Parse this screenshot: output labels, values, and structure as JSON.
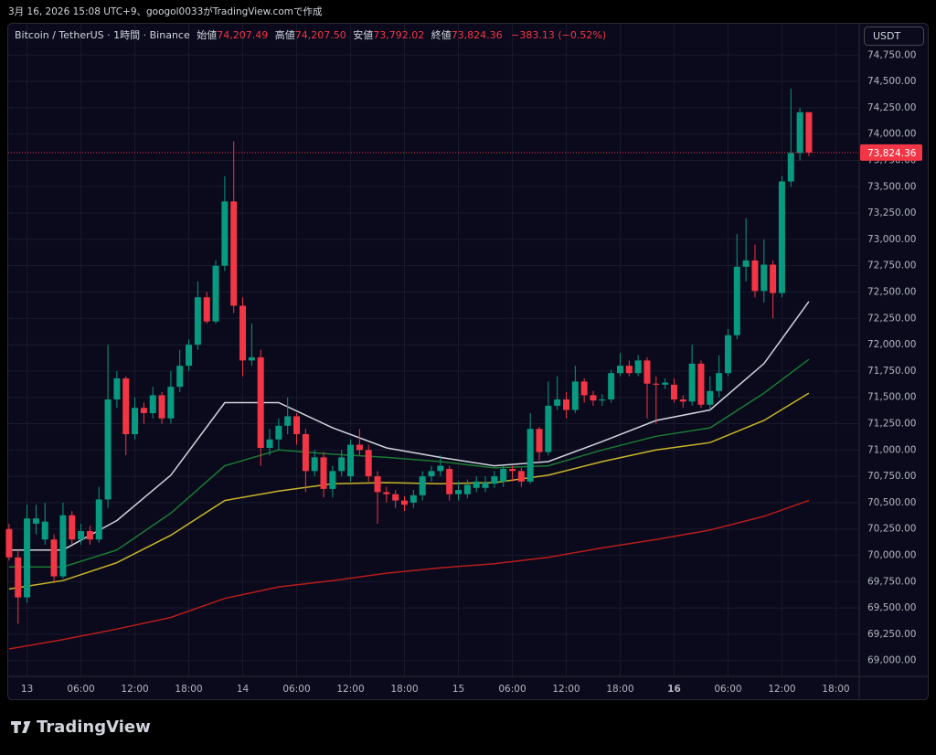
{
  "header": "3月 16, 2026 15:08 UTC+9、googol0033がTradingView.comで作成",
  "legend": {
    "symbol": "Bitcoin / TetherUS · 1時間 · Binance",
    "open_label": "始値",
    "open": "74,207.49",
    "high_label": "高値",
    "high": "74,207.50",
    "low_label": "安値",
    "low": "73,792.02",
    "close_label": "終値",
    "close": "73,824.36",
    "change": "−383.13 (−0.52%)"
  },
  "currency_button": "USDT",
  "brand": "TradingView",
  "chart_data": {
    "type": "candlestick",
    "up_color": "#089981",
    "down_color": "#f23645",
    "grid": true,
    "xlim": [
      -2.5,
      92.6
    ],
    "ylim": [
      68850,
      75030
    ],
    "xticks": [
      {
        "value": 0,
        "label": "13"
      },
      {
        "value": 6,
        "label": "06:00"
      },
      {
        "value": 12,
        "label": "12:00"
      },
      {
        "value": 18,
        "label": "18:00"
      },
      {
        "value": 24,
        "label": "14"
      },
      {
        "value": 30,
        "label": "06:00"
      },
      {
        "value": 36,
        "label": "12:00"
      },
      {
        "value": 42,
        "label": "18:00"
      },
      {
        "value": 48,
        "label": "15"
      },
      {
        "value": 54,
        "label": "06:00"
      },
      {
        "value": 60,
        "label": "12:00"
      },
      {
        "value": 66,
        "label": "18:00"
      },
      {
        "value": 72,
        "label": "16"
      },
      {
        "value": 78,
        "label": "06:00"
      },
      {
        "value": 84,
        "label": "12:00"
      },
      {
        "value": 90,
        "label": "18:00"
      }
    ],
    "yticks": [
      {
        "value": 69000,
        "label": "69,000.00"
      },
      {
        "value": 69250,
        "label": "69,250.00"
      },
      {
        "value": 69500,
        "label": "69,500.00"
      },
      {
        "value": 69750,
        "label": "69,750.00"
      },
      {
        "value": 70000,
        "label": "70,000.00"
      },
      {
        "value": 70250,
        "label": "70,250.00"
      },
      {
        "value": 70500,
        "label": "70,500.00"
      },
      {
        "value": 70750,
        "label": "70,750.00"
      },
      {
        "value": 71000,
        "label": "71,000.00"
      },
      {
        "value": 71250,
        "label": "71,250.00"
      },
      {
        "value": 71500,
        "label": "71,500.00"
      },
      {
        "value": 71750,
        "label": "71,750.00"
      },
      {
        "value": 72000,
        "label": "72,000.00"
      },
      {
        "value": 72250,
        "label": "72,250.00"
      },
      {
        "value": 72500,
        "label": "72,500.00"
      },
      {
        "value": 72750,
        "label": "72,750.00"
      },
      {
        "value": 73000,
        "label": "73,000.00"
      },
      {
        "value": 73250,
        "label": "73,250.00"
      },
      {
        "value": 73500,
        "label": "73,500.00"
      },
      {
        "value": 73750,
        "label": "73,750.00"
      },
      {
        "value": 74000,
        "label": "74,000.00"
      },
      {
        "value": 74250,
        "label": "74,250.00"
      },
      {
        "value": 74500,
        "label": "74,500.00"
      },
      {
        "value": 74750,
        "label": "74,750.00"
      }
    ],
    "last_price": {
      "value": 73824.36,
      "label": "73,824.36"
    },
    "x": [
      -2,
      -1,
      0,
      1,
      2,
      3,
      4,
      5,
      6,
      7,
      8,
      9,
      10,
      11,
      12,
      13,
      14,
      15,
      16,
      17,
      18,
      19,
      20,
      21,
      22,
      23,
      24,
      25,
      26,
      27,
      28,
      29,
      30,
      31,
      32,
      33,
      34,
      35,
      36,
      37,
      38,
      39,
      40,
      41,
      42,
      43,
      44,
      45,
      46,
      47,
      48,
      49,
      50,
      51,
      52,
      53,
      54,
      55,
      56,
      57,
      58,
      59,
      60,
      61,
      62,
      63,
      64,
      65,
      66,
      67,
      68,
      69,
      70,
      71,
      72,
      73,
      74,
      75,
      76,
      77,
      78,
      79,
      80,
      81,
      82,
      83,
      84,
      85,
      86,
      87
    ],
    "open": [
      70250,
      69980,
      69600,
      70300,
      70150,
      70150,
      69800,
      70380,
      70150,
      70230,
      70150,
      70530,
      71480,
      71680,
      71150,
      71400,
      71350,
      71520,
      71300,
      71600,
      71800,
      72000,
      72450,
      72220,
      72750,
      73360,
      72370,
      71850,
      71880,
      71020,
      71100,
      71230,
      71320,
      71150,
      70800,
      70930,
      70630,
      70800,
      70750,
      71050,
      71000,
      70750,
      70600,
      70580,
      70520,
      70500,
      70570,
      70750,
      70800,
      70820,
      70580,
      70580,
      70640,
      70640,
      70680,
      70700,
      70820,
      70800,
      70700,
      71200,
      70980,
      71420,
      71480,
      71380,
      71650,
      71520,
      71470,
      71480,
      71730,
      71800,
      71730,
      71850,
      71630,
      71620,
      71620,
      71480,
      71460,
      71820,
      71430,
      71560,
      71730,
      72090,
      72740,
      72800,
      72510,
      72760,
      72490,
      73550,
      73820,
      74207.49
    ],
    "high": [
      70300,
      70050,
      70480,
      70480,
      70500,
      70200,
      70500,
      70420,
      70300,
      70280,
      70650,
      72000,
      71750,
      71700,
      71500,
      71450,
      71600,
      71550,
      71750,
      71950,
      72050,
      72600,
      72500,
      72800,
      73600,
      73930,
      72450,
      72200,
      71950,
      71200,
      71300,
      71500,
      71350,
      71200,
      71000,
      70980,
      70850,
      71000,
      71100,
      71200,
      71050,
      70800,
      70650,
      70620,
      70560,
      70620,
      70800,
      70850,
      70950,
      70850,
      70700,
      70720,
      70750,
      70750,
      70800,
      70850,
      70850,
      70830,
      71350,
      71220,
      71650,
      71700,
      71550,
      71800,
      71680,
      71560,
      71530,
      71760,
      71920,
      71850,
      71900,
      71880,
      71700,
      71680,
      71680,
      71520,
      72000,
      71850,
      71700,
      71900,
      72150,
      73050,
      73200,
      72950,
      73000,
      72800,
      73600,
      74430,
      74250,
      74207.5
    ],
    "low": [
      69950,
      69350,
      69550,
      70200,
      70100,
      69750,
      69780,
      70100,
      70100,
      70100,
      70120,
      70450,
      71400,
      70950,
      71100,
      71250,
      71300,
      71250,
      71250,
      71550,
      71750,
      71950,
      72200,
      72200,
      72700,
      72300,
      71700,
      71800,
      70850,
      70950,
      71000,
      71150,
      71050,
      70600,
      70750,
      70550,
      70550,
      70750,
      70700,
      70950,
      70700,
      70300,
      70500,
      70450,
      70420,
      70450,
      70520,
      70700,
      70750,
      70520,
      70520,
      70540,
      70600,
      70600,
      70640,
      70650,
      70700,
      70650,
      70680,
      70900,
      70950,
      71380,
      71300,
      71350,
      71450,
      71420,
      71420,
      71450,
      71700,
      71700,
      71700,
      71300,
      71250,
      71580,
      71450,
      71400,
      71420,
      71400,
      71380,
      71500,
      71700,
      72050,
      72600,
      72450,
      72400,
      72250,
      72450,
      73500,
      73750,
      73792.02
    ],
    "close": [
      69980,
      69600,
      70350,
      70350,
      70320,
      69800,
      70380,
      70150,
      70230,
      70150,
      70530,
      71480,
      71680,
      71150,
      71400,
      71350,
      71520,
      71300,
      71600,
      71800,
      72000,
      72450,
      72220,
      72750,
      73360,
      72370,
      71850,
      71880,
      71020,
      71100,
      71230,
      71320,
      71150,
      70800,
      70930,
      70630,
      70800,
      70930,
      71050,
      71000,
      70750,
      70600,
      70580,
      70520,
      70480,
      70570,
      70750,
      70800,
      70850,
      70580,
      70620,
      70670,
      70700,
      70690,
      70750,
      70820,
      70800,
      70700,
      71200,
      70980,
      71420,
      71480,
      71380,
      71650,
      71520,
      71470,
      71480,
      71730,
      71800,
      71730,
      71850,
      71630,
      71620,
      71640,
      71480,
      71460,
      71820,
      71430,
      71560,
      71730,
      72090,
      72740,
      72800,
      72510,
      72760,
      72490,
      73550,
      73820,
      74207.49,
      73824.36
    ],
    "overlays": [
      {
        "color": "#d1d4dc",
        "x": [
          -2,
          4,
          10,
          16,
          22,
          28,
          34,
          40,
          46,
          52,
          58,
          64,
          70,
          76,
          82,
          87
        ],
        "values": [
          70050,
          70050,
          70330,
          70760,
          71450,
          71450,
          71210,
          71020,
          70930,
          70850,
          70890,
          71080,
          71280,
          71380,
          71820,
          72410
        ]
      },
      {
        "color": "#1b7a34",
        "x": [
          -2,
          4,
          10,
          16,
          22,
          28,
          34,
          40,
          46,
          52,
          58,
          64,
          70,
          76,
          82,
          87
        ],
        "values": [
          69890,
          69890,
          70050,
          70400,
          70850,
          71000,
          70960,
          70930,
          70890,
          70830,
          70850,
          71000,
          71130,
          71210,
          71540,
          71860
        ]
      },
      {
        "color": "#c9b52a",
        "x": [
          -2,
          4,
          10,
          16,
          22,
          28,
          34,
          40,
          46,
          52,
          58,
          64,
          70,
          76,
          82,
          87
        ],
        "values": [
          69680,
          69760,
          69930,
          70190,
          70520,
          70610,
          70680,
          70690,
          70680,
          70690,
          70760,
          70890,
          71000,
          71070,
          71280,
          71540
        ]
      },
      {
        "color": "#b71c1c",
        "x": [
          -2,
          4,
          10,
          16,
          22,
          28,
          34,
          40,
          46,
          52,
          58,
          64,
          70,
          76,
          82,
          87
        ],
        "values": [
          69110,
          69200,
          69300,
          69410,
          69590,
          69700,
          69760,
          69830,
          69880,
          69920,
          69980,
          70070,
          70150,
          70240,
          70370,
          70520
        ]
      }
    ]
  }
}
